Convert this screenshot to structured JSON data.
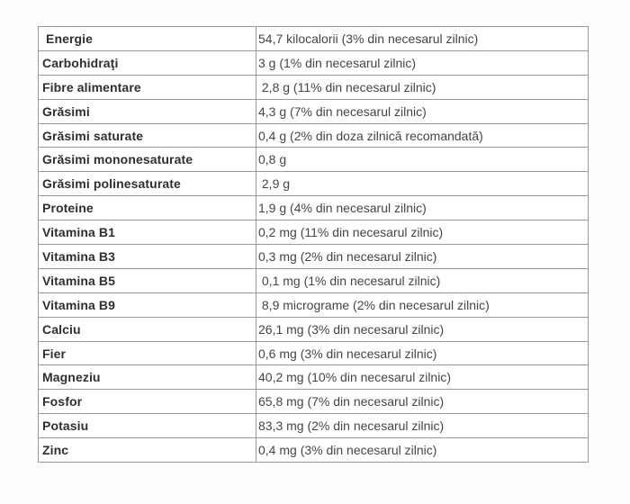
{
  "table": {
    "name": "nutrition-facts",
    "columns": [
      "nutrient",
      "value"
    ],
    "rows": [
      {
        "label": " Energie",
        "value": "54,7 kilocalorii (3% din necesarul zilnic)"
      },
      {
        "label": "Carbohidraţi",
        "value": "3 g (1% din necesarul zilnic)"
      },
      {
        "label": "Fibre alimentare",
        "value": " 2,8 g (11% din necesarul zilnic)"
      },
      {
        "label": "Grăsimi",
        "value": "4,3 g (7% din necesarul zilnic)"
      },
      {
        "label": "Grăsimi saturate",
        "value": "0,4 g (2% din doza zilnică recomandată)"
      },
      {
        "label": "Grăsimi mononesaturate",
        "value": "0,8 g"
      },
      {
        "label": "Grăsimi polinesaturate",
        "value": " 2,9 g"
      },
      {
        "label": "Proteine",
        "value": "1,9 g (4% din necesarul zilnic)"
      },
      {
        "label": "Vitamina B1",
        "value": "0,2 mg (11% din necesarul zilnic)"
      },
      {
        "label": "Vitamina B3",
        "value": "0,3 mg (2% din necesarul zilnic)"
      },
      {
        "label": "Vitamina B5",
        "value": " 0,1 mg (1% din necesarul zilnic)"
      },
      {
        "label": "Vitamina B9",
        "value": " 8,9 micrograme (2% din necesarul zilnic)"
      },
      {
        "label": "Calciu",
        "value": "26,1 mg (3% din necesarul zilnic)"
      },
      {
        "label": "Fier",
        "value": "0,6 mg (3% din necesarul zilnic)"
      },
      {
        "label": "Magneziu",
        "value": "40,2 mg (10% din necesarul zilnic)"
      },
      {
        "label": "Fosfor",
        "value": "65,8 mg (7% din necesarul zilnic)"
      },
      {
        "label": "Potasiu",
        "value": "83,3 mg (2% din necesarul zilnic)"
      },
      {
        "label": "Zinc",
        "value": "0,4 mg (3% din necesarul zilnic)"
      }
    ]
  },
  "colors": {
    "border_outer": "#6e6e6e",
    "border_inner": "#9a9a9a",
    "label_text": "#2f2f2f",
    "value_text": "#454545",
    "page_background": "#fefefe"
  }
}
